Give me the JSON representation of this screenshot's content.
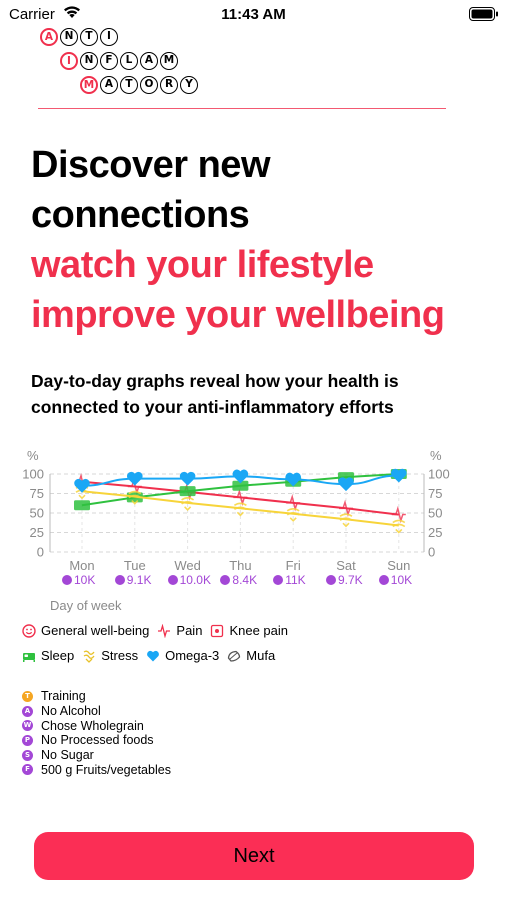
{
  "status_bar": {
    "carrier": "Carrier",
    "time": "11:43 AM"
  },
  "logo": {
    "rows": [
      [
        "A",
        "N",
        "T",
        "I"
      ],
      [
        "I",
        "N",
        "F",
        "L",
        "A",
        "M"
      ],
      [
        "M",
        "A",
        "T",
        "O",
        "R",
        "Y"
      ]
    ]
  },
  "headline": {
    "line1": "Discover new",
    "line2": "connections",
    "line3": "watch your lifestyle",
    "line4": "improve your wellbeing"
  },
  "subheadline": "Day-to-day graphs reveal how your health is connected to your anti-inflammatory efforts",
  "colors": {
    "accent": "#f0304d",
    "button": "#fb2e55",
    "activity": "#a347d6",
    "training": "#f5a623"
  },
  "chart_data": {
    "type": "line",
    "categories": [
      "Mon",
      "Tue",
      "Wed",
      "Thu",
      "Fri",
      "Sat",
      "Sun"
    ],
    "xlabel": "Day of week",
    "ylabel_left": "%",
    "ylabel_right": "%",
    "ylim": [
      0,
      100
    ],
    "yticks": [
      "0",
      "25",
      "50",
      "75",
      "100"
    ],
    "steps": [
      "10K",
      "9.1K",
      "10.0K",
      "8.4K",
      "11K",
      "9.7K",
      "10K"
    ],
    "series": [
      {
        "name": "Pain",
        "color": "#f0304d",
        "icon": "pulse-icon",
        "values": [
          90,
          84,
          77,
          70,
          63,
          56,
          48
        ]
      },
      {
        "name": "Sleep",
        "color": "#2fc13f",
        "icon": "bed-icon",
        "values": [
          60,
          70,
          78,
          85,
          90,
          96,
          100
        ]
      },
      {
        "name": "Stress",
        "color": "#f7d43a",
        "icon": "stress-icon",
        "values": [
          78,
          71,
          63,
          56,
          49,
          42,
          34
        ]
      },
      {
        "name": "Omega-3",
        "color": "#1aa7f5",
        "icon": "heart-icon",
        "values": [
          85,
          94,
          94,
          97,
          93,
          87,
          98
        ]
      }
    ]
  },
  "legend": {
    "row1": [
      "General well-being",
      "Pain",
      "Knee pain"
    ],
    "row2": [
      "Sleep",
      "Stress",
      "Omega-3",
      "Mufa"
    ]
  },
  "activities": [
    {
      "letter": "T",
      "label": "Training",
      "color": "#f5a623"
    },
    {
      "letter": "A",
      "label": "No Alcohol",
      "color": "#a347d6"
    },
    {
      "letter": "W",
      "label": "Chose Wholegrain",
      "color": "#a347d6"
    },
    {
      "letter": "P",
      "label": "No Processed foods",
      "color": "#a347d6"
    },
    {
      "letter": "S",
      "label": "No Sugar",
      "color": "#a347d6"
    },
    {
      "letter": "F",
      "label": "500 g Fruits/vegetables",
      "color": "#a347d6"
    }
  ],
  "next_button": "Next"
}
